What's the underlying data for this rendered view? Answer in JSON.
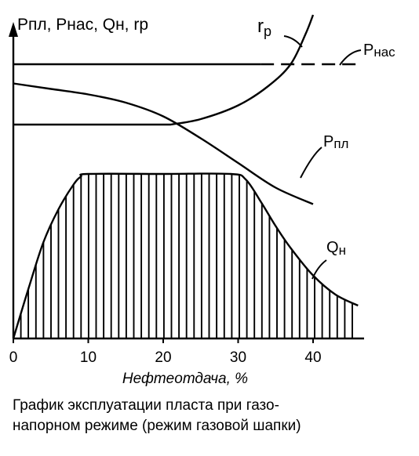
{
  "chart_data": {
    "type": "line",
    "title": "",
    "ylabel": "Pпл, Pнас, Qн, rр",
    "xlabel": "Нефтеотдача, %",
    "xlim": [
      0,
      47
    ],
    "xticks": [
      0,
      10,
      20,
      30,
      40
    ],
    "xtick_labels": [
      "0",
      "10",
      "20",
      "30",
      "40"
    ],
    "grid": false,
    "legend": "none",
    "series": [
      {
        "name": "Pнас",
        "label_base": "P",
        "label_sub": "нас",
        "style": "solid until ~33%, dashed after",
        "values": [
          [
            0,
            1.0
          ],
          [
            33,
            1.0
          ],
          [
            46,
            1.0
          ]
        ]
      },
      {
        "name": "Pпл",
        "label_base": "P",
        "label_sub": "пл",
        "style": "solid",
        "values": [
          [
            0,
            0.93
          ],
          [
            5,
            0.91
          ],
          [
            10,
            0.89
          ],
          [
            15,
            0.86
          ],
          [
            20,
            0.81
          ],
          [
            25,
            0.73
          ],
          [
            30,
            0.64
          ],
          [
            35,
            0.55
          ],
          [
            40,
            0.49
          ]
        ]
      },
      {
        "name": "rр",
        "label_base": "r",
        "label_sub": "р",
        "style": "solid",
        "values": [
          [
            0,
            0.78
          ],
          [
            21,
            0.78
          ],
          [
            25,
            0.8
          ],
          [
            30,
            0.85
          ],
          [
            34,
            0.92
          ],
          [
            37,
            1.0
          ],
          [
            39,
            1.11
          ],
          [
            40,
            1.18
          ]
        ]
      },
      {
        "name": "Qн",
        "label_base": "Q",
        "label_sub": "н",
        "style": "solid, area below hatched with vertical lines",
        "values": [
          [
            0,
            0.0
          ],
          [
            2,
            0.18
          ],
          [
            4,
            0.35
          ],
          [
            6,
            0.47
          ],
          [
            8,
            0.56
          ],
          [
            9,
            0.59
          ],
          [
            10,
            0.6
          ],
          [
            20,
            0.6
          ],
          [
            29,
            0.6
          ],
          [
            31,
            0.58
          ],
          [
            33,
            0.5
          ],
          [
            35,
            0.41
          ],
          [
            37,
            0.33
          ],
          [
            40,
            0.23
          ],
          [
            43,
            0.16
          ],
          [
            46,
            0.12
          ]
        ]
      }
    ]
  },
  "caption": {
    "line1": "График эксплуатации пласта при газо-",
    "line2": "напорном режиме (режим газовой шапки)"
  }
}
